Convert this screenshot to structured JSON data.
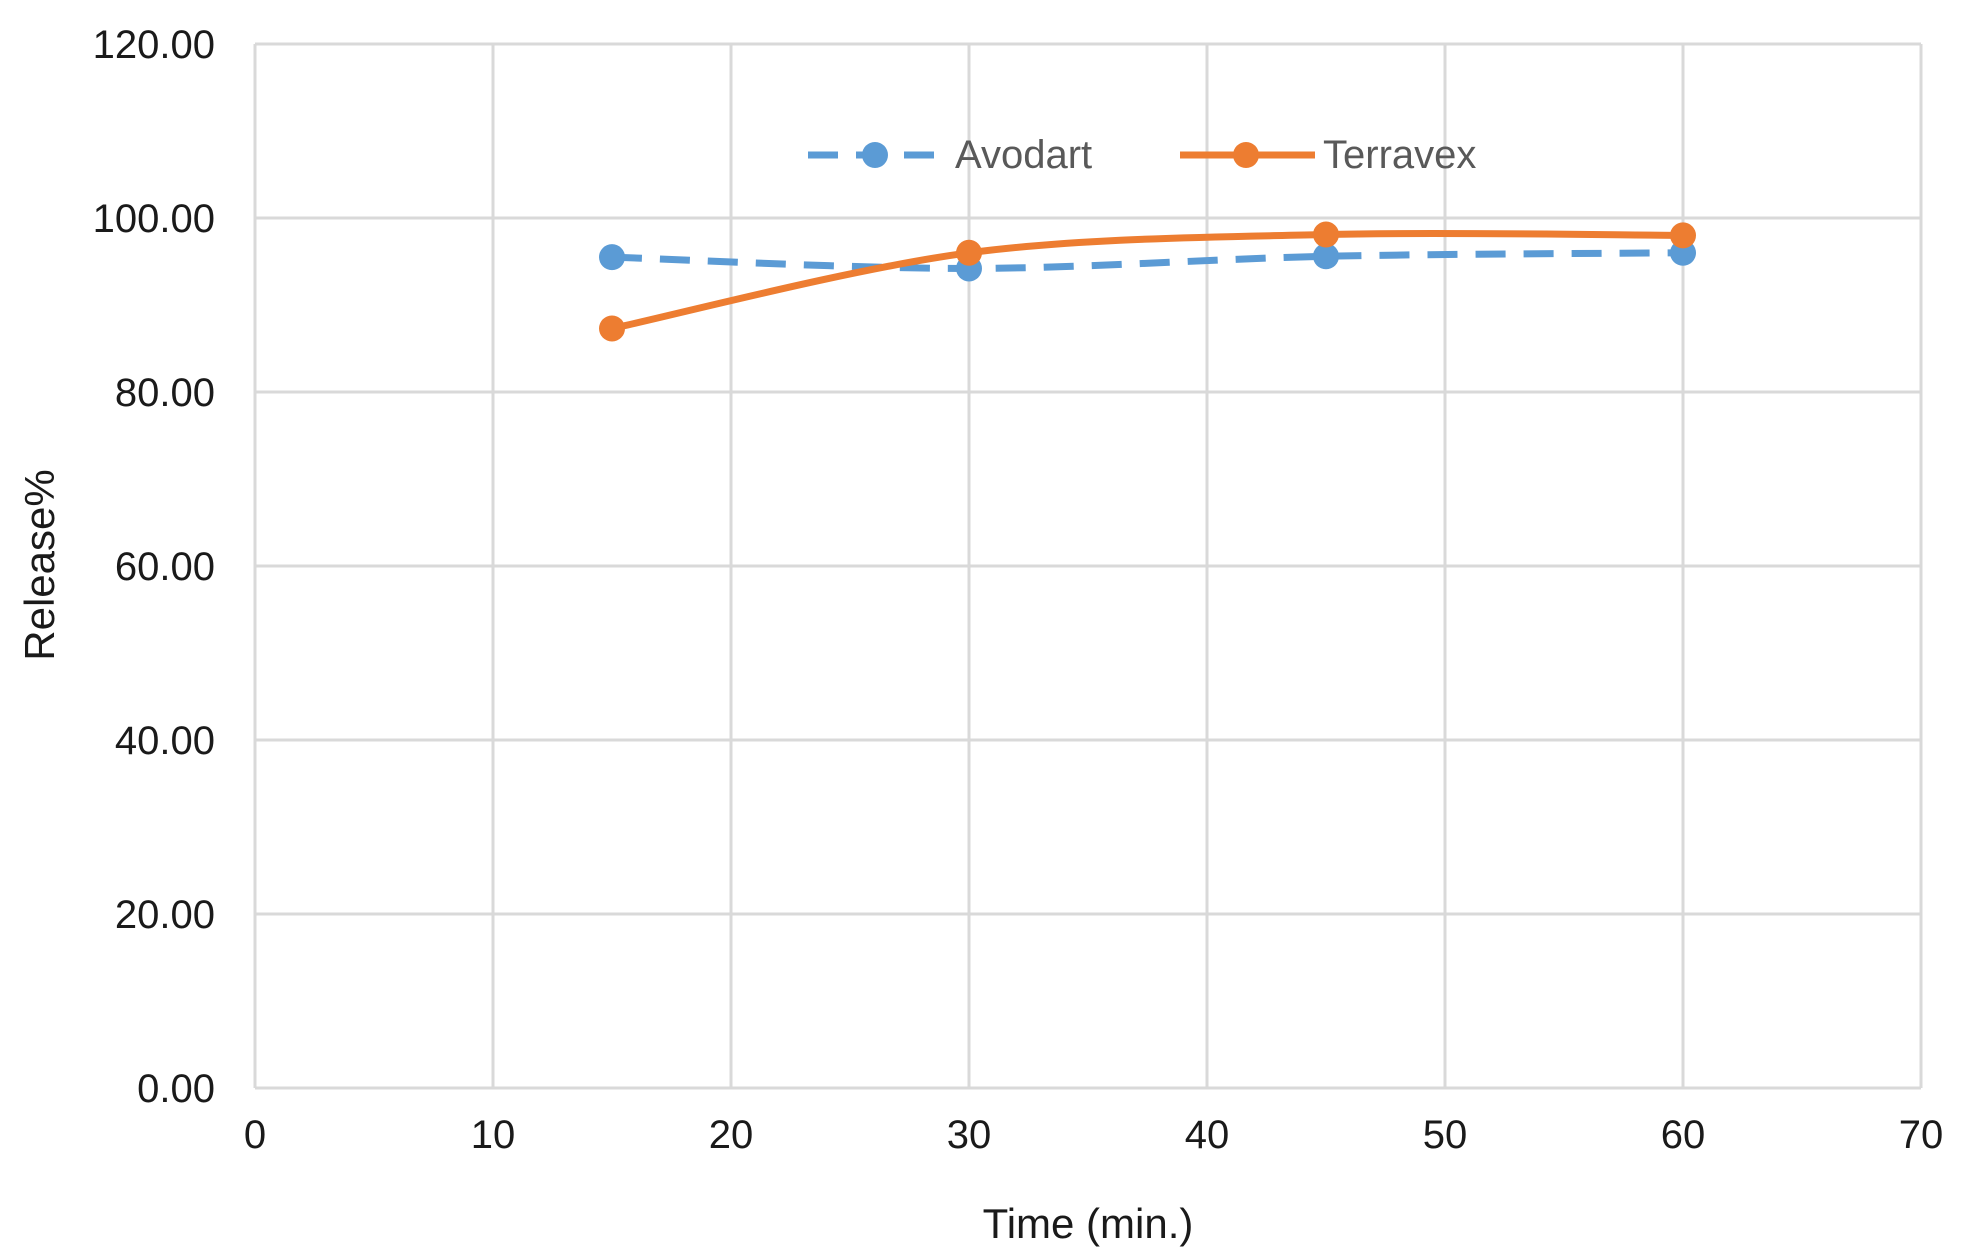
{
  "chart_data": {
    "type": "line",
    "title": "",
    "xlabel": "Time (min.)",
    "ylabel": "Release%",
    "xlim": [
      0,
      70
    ],
    "ylim": [
      0,
      120
    ],
    "x_ticks": [
      "0",
      "10",
      "20",
      "30",
      "40",
      "50",
      "60",
      "70"
    ],
    "y_ticks": [
      "0.00",
      "20.00",
      "40.00",
      "60.00",
      "80.00",
      "100.00",
      "120.00"
    ],
    "grid": true,
    "legend_position": "top-center",
    "series": [
      {
        "name": "Avodart",
        "x": [
          15,
          30,
          45,
          60
        ],
        "y": [
          95.5,
          94.2,
          95.6,
          96.0
        ],
        "color": "#5B9BD5",
        "line_style": "dashed",
        "smooth": true,
        "marker": "circle"
      },
      {
        "name": "Terravex",
        "x": [
          15,
          30,
          45,
          60
        ],
        "y": [
          87.3,
          96.0,
          98.1,
          98.0
        ],
        "color": "#ED7D31",
        "line_style": "solid",
        "smooth": true,
        "marker": "circle"
      }
    ],
    "colors": {
      "grid": "#d9d9d9",
      "text": "#1a1a1a",
      "legend_text": "#595959"
    }
  }
}
